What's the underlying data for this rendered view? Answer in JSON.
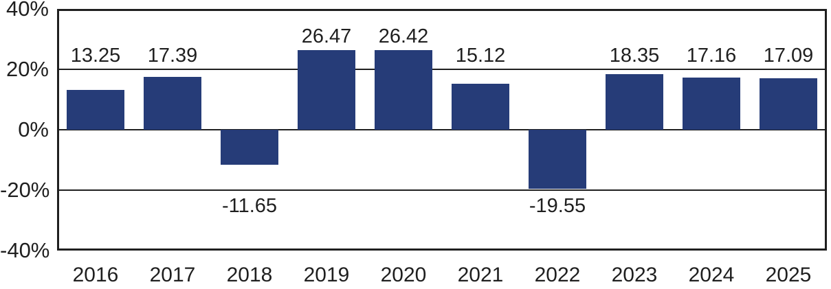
{
  "chart_data": {
    "type": "bar",
    "title": "",
    "xlabel": "",
    "ylabel": "",
    "categories": [
      "2016",
      "2017",
      "2018",
      "2019",
      "2020",
      "2021",
      "2022",
      "2023",
      "2024",
      "2025"
    ],
    "values": [
      13.25,
      17.39,
      -11.65,
      26.47,
      26.42,
      15.12,
      -19.55,
      18.35,
      17.16,
      17.09
    ],
    "value_labels": [
      "13.25",
      "17.39",
      "-11.65",
      "26.47",
      "26.42",
      "15.12",
      "-19.55",
      "18.35",
      "17.16",
      "17.09"
    ],
    "y_ticks": [
      {
        "value": 40,
        "label": "40%"
      },
      {
        "value": 20,
        "label": "20%"
      },
      {
        "value": 0,
        "label": "0%"
      },
      {
        "value": -20,
        "label": "-20%"
      },
      {
        "value": -40,
        "label": "-40%"
      }
    ],
    "ylim": [
      -40,
      40
    ],
    "grid": true,
    "legend": "none",
    "bar_color": "#263C78",
    "axis_color": "#1F1F1F",
    "text_color": "#1F1F1F",
    "background_color": "#FFFFFF"
  }
}
